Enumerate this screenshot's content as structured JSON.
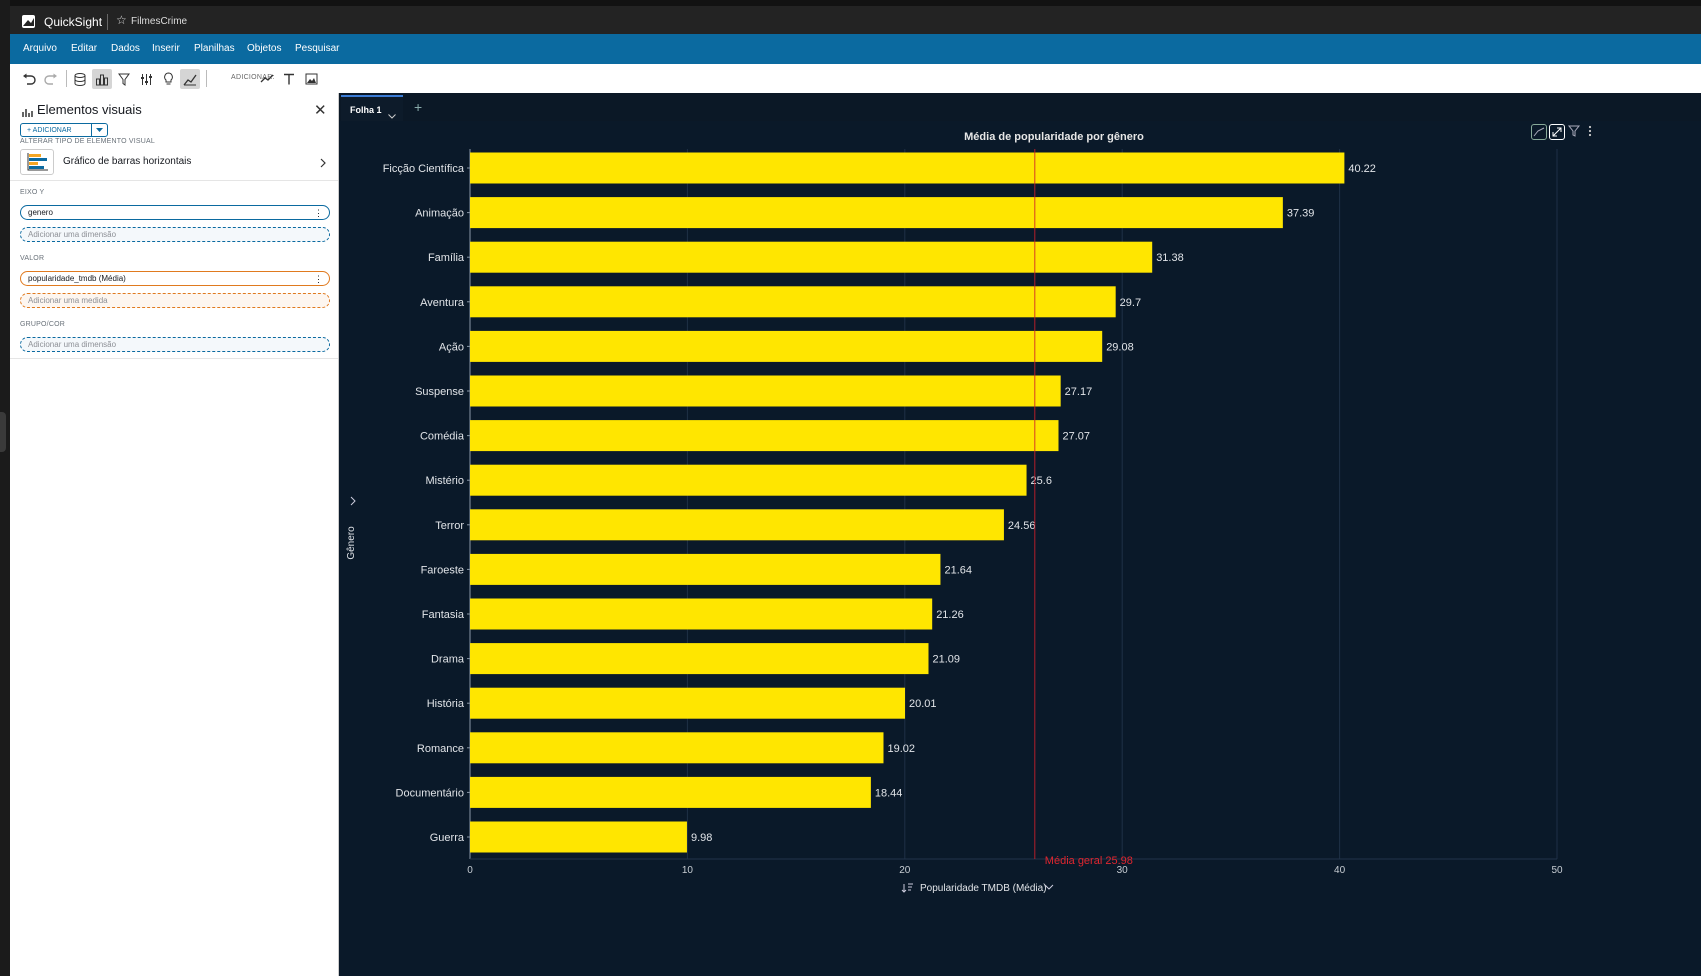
{
  "titlebar": {
    "app_name": "QuickSight",
    "analysis_name": "FilmesCrime"
  },
  "menu": [
    "Arquivo",
    "Editar",
    "Dados",
    "Inserir",
    "Planilhas",
    "Objetos",
    "Pesquisar"
  ],
  "toolbar": {
    "add_label": "ADICIONAR:"
  },
  "panel": {
    "title": "Elementos visuais",
    "add_button": "+ ADICIONAR",
    "change_type_label": "ALTERAR TIPO DE ELEMENTO VISUAL",
    "visual_type": "Gráfico de barras horizontais",
    "y_axis_label": "EIXO Y",
    "y_field": "genero",
    "y_placeholder": "Adicionar uma dimensão",
    "value_label": "VALOR",
    "value_field": "popularidade_tmdb (Média)",
    "value_placeholder": "Adicionar uma medida",
    "group_label": "GRUPO/COR",
    "group_placeholder": "Adicionar uma dimensão"
  },
  "sheet": {
    "tab": "Folha 1"
  },
  "chart_data": {
    "type": "bar",
    "orientation": "horizontal",
    "title": "Média de popularidade por gênero",
    "xlabel": "Popularidade TMDB (Média)",
    "ylabel": "Gênero",
    "categories": [
      "Ficção Científica",
      "Animação",
      "Família",
      "Aventura",
      "Ação",
      "Suspense",
      "Comédia",
      "Mistério",
      "Terror",
      "Faroeste",
      "Fantasia",
      "Drama",
      "História",
      "Romance",
      "Documentário",
      "Guerra"
    ],
    "values": [
      40.22,
      37.39,
      31.38,
      29.7,
      29.08,
      27.17,
      27.07,
      25.6,
      24.56,
      21.64,
      21.26,
      21.09,
      20.01,
      19.02,
      18.44,
      9.98
    ],
    "value_labels": [
      "40.22",
      "37.39",
      "31.38",
      "29.7",
      "29.08",
      "27.17",
      "27.07",
      "25.6",
      "24.56",
      "21.64",
      "21.26",
      "21.09",
      "20.01",
      "19.02",
      "18.44",
      "9.98"
    ],
    "xlim": [
      0,
      50
    ],
    "xticks": [
      0,
      10,
      20,
      30,
      40,
      50
    ],
    "reference_line": {
      "label": "Média geral 25.98",
      "value": 25.98,
      "color": "#d0202a"
    },
    "bar_color": "#ffe600",
    "grid": true
  }
}
